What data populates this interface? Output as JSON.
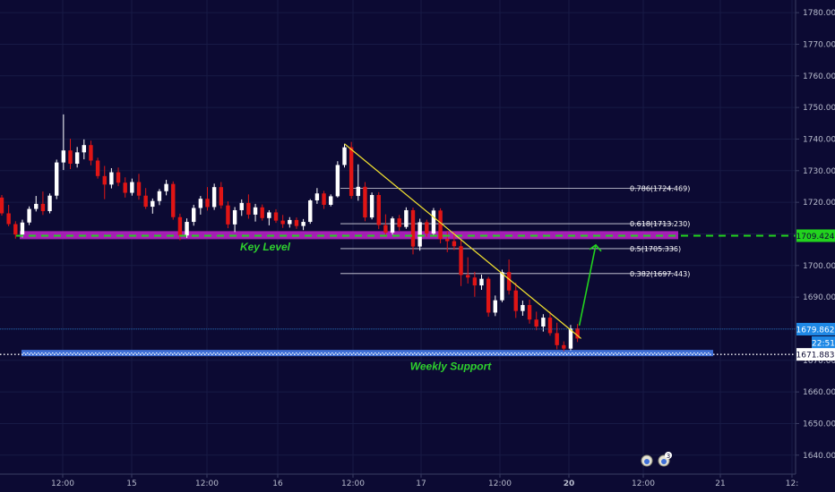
{
  "chart_data": {
    "type": "candlestick",
    "price_axis": {
      "range": [
        1634,
        1784
      ],
      "ticks": [
        "1780.000",
        "1770.000",
        "1760.000",
        "1750.000",
        "1740.000",
        "1730.000",
        "1720.000",
        "1710.000",
        "1700.000",
        "1690.000",
        "1680.000",
        "1670.000",
        "1660.000",
        "1650.000",
        "1640.000"
      ],
      "tick_values": [
        1780,
        1770,
        1760,
        1750,
        1740,
        1730,
        1720,
        1710,
        1700,
        1690,
        1680,
        1670,
        1660,
        1650,
        1640
      ]
    },
    "time_axis": {
      "ticks": [
        "12:00",
        "15",
        "12:00",
        "16",
        "12:00",
        "17",
        "12:00",
        "20",
        "12:00",
        "21",
        "12:"
      ],
      "bold_tick": "20"
    },
    "candles_ohlc": [
      [
        1721.5,
        1722.3,
        1715.8,
        1716.5
      ],
      [
        1716.5,
        1719.2,
        1712.4,
        1713.1
      ],
      [
        1713.1,
        1714.0,
        1708.5,
        1709.8
      ],
      [
        1709.8,
        1714.5,
        1708.9,
        1713.6
      ],
      [
        1713.6,
        1718.7,
        1712.8,
        1717.9
      ],
      [
        1717.9,
        1722.0,
        1717.1,
        1719.5
      ],
      [
        1719.5,
        1723.4,
        1716.0,
        1717.2
      ],
      [
        1717.2,
        1722.8,
        1716.5,
        1722.1
      ],
      [
        1722.1,
        1733.5,
        1721.0,
        1732.6
      ],
      [
        1732.6,
        1747.8,
        1730.2,
        1736.4
      ],
      [
        1736.4,
        1740.1,
        1730.5,
        1732.2
      ],
      [
        1732.2,
        1737.5,
        1731.0,
        1735.8
      ],
      [
        1735.8,
        1739.9,
        1733.6,
        1738.1
      ],
      [
        1738.1,
        1739.5,
        1731.7,
        1733.2
      ],
      [
        1733.2,
        1734.1,
        1727.5,
        1728.3
      ],
      [
        1728.3,
        1731.5,
        1721.0,
        1725.6
      ],
      [
        1725.6,
        1730.8,
        1724.4,
        1729.5
      ],
      [
        1729.5,
        1731.0,
        1725.1,
        1726.2
      ],
      [
        1726.2,
        1727.9,
        1721.5,
        1723.0
      ],
      [
        1723.0,
        1727.5,
        1722.1,
        1726.4
      ],
      [
        1726.4,
        1729.0,
        1720.8,
        1722.1
      ],
      [
        1722.1,
        1724.5,
        1717.9,
        1718.6
      ],
      [
        1718.6,
        1721.2,
        1716.4,
        1720.4
      ],
      [
        1720.4,
        1724.2,
        1719.1,
        1723.5
      ],
      [
        1723.5,
        1727.1,
        1722.2,
        1725.8
      ],
      [
        1725.8,
        1726.6,
        1714.5,
        1715.3
      ],
      [
        1715.3,
        1716.4,
        1708.0,
        1709.5
      ],
      [
        1709.5,
        1714.9,
        1708.7,
        1713.8
      ],
      [
        1713.8,
        1719.2,
        1712.6,
        1718.2
      ],
      [
        1718.2,
        1722.0,
        1716.1,
        1721.1
      ],
      [
        1721.1,
        1724.8,
        1717.4,
        1718.5
      ],
      [
        1718.5,
        1725.9,
        1717.6,
        1724.8
      ],
      [
        1724.8,
        1726.4,
        1718.0,
        1719.0
      ],
      [
        1719.0,
        1720.3,
        1711.8,
        1713.0
      ],
      [
        1713.0,
        1718.5,
        1710.6,
        1717.5
      ],
      [
        1717.5,
        1720.9,
        1715.7,
        1719.8
      ],
      [
        1719.8,
        1722.5,
        1714.8,
        1716.1
      ],
      [
        1716.1,
        1719.5,
        1713.9,
        1718.4
      ],
      [
        1718.4,
        1719.3,
        1714.2,
        1715.0
      ],
      [
        1715.0,
        1717.5,
        1712.7,
        1716.8
      ],
      [
        1716.8,
        1717.8,
        1713.5,
        1714.2
      ],
      [
        1714.2,
        1716.0,
        1711.9,
        1713.1
      ],
      [
        1713.1,
        1715.3,
        1712.0,
        1714.4
      ],
      [
        1714.4,
        1715.2,
        1711.6,
        1712.5
      ],
      [
        1712.5,
        1714.7,
        1711.2,
        1713.8
      ],
      [
        1713.8,
        1721.0,
        1713.2,
        1720.6
      ],
      [
        1720.6,
        1724.5,
        1719.5,
        1722.8
      ],
      [
        1722.8,
        1723.6,
        1717.9,
        1719.2
      ],
      [
        1719.2,
        1722.5,
        1718.7,
        1721.9
      ],
      [
        1721.9,
        1733.0,
        1721.5,
        1731.8
      ],
      [
        1731.8,
        1738.5,
        1731.0,
        1737.4
      ],
      [
        1737.4,
        1739.1,
        1721.1,
        1722.0
      ],
      [
        1722.0,
        1732.0,
        1720.5,
        1724.9
      ],
      [
        1724.9,
        1726.4,
        1714.0,
        1715.2
      ],
      [
        1715.2,
        1723.1,
        1714.6,
        1722.3
      ],
      [
        1722.3,
        1723.2,
        1711.5,
        1712.8
      ],
      [
        1712.8,
        1716.2,
        1709.1,
        1710.4
      ],
      [
        1710.4,
        1715.5,
        1709.8,
        1714.9
      ],
      [
        1714.9,
        1716.0,
        1711.0,
        1712.2
      ],
      [
        1712.2,
        1718.4,
        1711.6,
        1717.5
      ],
      [
        1717.5,
        1718.3,
        1703.5,
        1706.0
      ],
      [
        1706.0,
        1714.8,
        1704.7,
        1713.7
      ],
      [
        1713.7,
        1714.5,
        1709.1,
        1710.1
      ],
      [
        1710.1,
        1718.2,
        1709.3,
        1717.4
      ],
      [
        1717.4,
        1718.1,
        1707.0,
        1708.4
      ],
      [
        1708.4,
        1711.0,
        1704.2,
        1707.7
      ],
      [
        1707.7,
        1710.5,
        1704.9,
        1706.1
      ],
      [
        1706.1,
        1708.3,
        1693.5,
        1697.0
      ],
      [
        1697.0,
        1702.6,
        1694.3,
        1696.2
      ],
      [
        1696.2,
        1698.0,
        1690.1,
        1693.7
      ],
      [
        1693.7,
        1697.1,
        1692.3,
        1695.8
      ],
      [
        1695.8,
        1696.4,
        1683.8,
        1685.1
      ],
      [
        1685.1,
        1690.5,
        1684.0,
        1689.0
      ],
      [
        1689.0,
        1698.7,
        1688.4,
        1697.9
      ],
      [
        1697.9,
        1701.9,
        1690.8,
        1692.1
      ],
      [
        1692.1,
        1694.6,
        1683.4,
        1685.6
      ],
      [
        1685.6,
        1688.9,
        1684.1,
        1687.5
      ],
      [
        1687.5,
        1689.2,
        1681.6,
        1682.9
      ],
      [
        1682.9,
        1685.4,
        1679.5,
        1680.7
      ],
      [
        1680.7,
        1684.6,
        1679.1,
        1683.5
      ],
      [
        1683.5,
        1685.4,
        1677.8,
        1678.6
      ],
      [
        1678.6,
        1681.9,
        1673.5,
        1674.8
      ],
      [
        1674.8,
        1676.0,
        1672.9,
        1673.7
      ],
      [
        1673.7,
        1681.2,
        1673.1,
        1680.1
      ],
      [
        1680.1,
        1681.5,
        1675.8,
        1676.9
      ]
    ],
    "horizontal_levels": [
      {
        "price": 1709.424,
        "label": "1709.424",
        "color": "#22d31e"
      },
      {
        "price": 1679.862,
        "label": "1679.862",
        "color": "#1e88e5"
      },
      {
        "price": 1671.883,
        "label": "1671.883",
        "color": "#ffffff"
      }
    ],
    "countdown_label": "22:51",
    "fib_levels": [
      {
        "price": 1724.469,
        "label": "0.786(1724.469)"
      },
      {
        "price": 1713.23,
        "label": "0.618(1713.230)"
      },
      {
        "price": 1705.336,
        "label": "0.5(1705.336)"
      },
      {
        "price": 1697.443,
        "label": "0.382(1697.443)"
      }
    ],
    "zones": [
      {
        "price": 1709.6,
        "label": "Key Level",
        "color": "#a61fb5"
      },
      {
        "price": 1672.3,
        "label": "Weekly Support",
        "color": "#3f6fd6"
      }
    ],
    "events_badge_count": "3",
    "colors": {
      "background": "#0c0a33",
      "up": "#ffffff",
      "down": "#e01515",
      "trendline": "#f2e230",
      "arrow": "#22d31e",
      "grid": "#171a45"
    }
  }
}
